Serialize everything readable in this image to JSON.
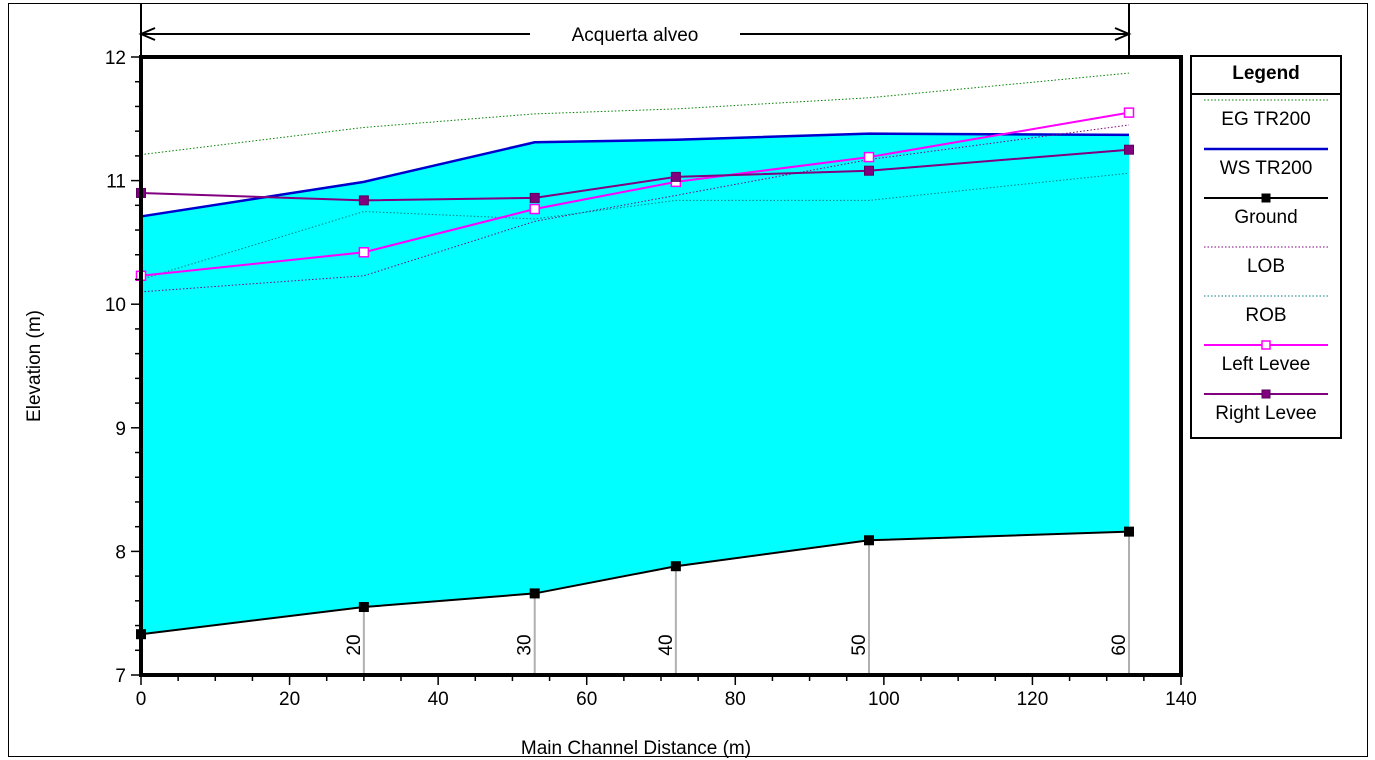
{
  "chart_data": {
    "type": "line",
    "title": "Acquerta alveo",
    "xlabel": "Main Channel Distance (m)",
    "ylabel": "Elevation (m)",
    "xlim": [
      0,
      140
    ],
    "ylim": [
      7,
      12
    ],
    "x_ticks": [
      0,
      20,
      40,
      60,
      80,
      100,
      120,
      140
    ],
    "y_ticks": [
      7,
      8,
      9,
      10,
      11,
      12
    ],
    "grid": false,
    "legend_position": "right",
    "legend_title": "Legend",
    "stations": [
      {
        "x": 30,
        "label": "20"
      },
      {
        "x": 53,
        "label": "30"
      },
      {
        "x": 72,
        "label": "40"
      },
      {
        "x": 98,
        "label": "50"
      },
      {
        "x": 133,
        "label": "60"
      }
    ],
    "series": [
      {
        "name": "EG  TR200",
        "color": "#008000",
        "style": "dotted",
        "x": [
          0,
          30,
          53,
          72,
          98,
          133
        ],
        "values": [
          11.21,
          11.43,
          11.54,
          11.58,
          11.67,
          11.87
        ]
      },
      {
        "name": "WS  TR200",
        "color": "#0000cc",
        "style": "solid-thick",
        "fill": "#00ffff",
        "x": [
          0,
          30,
          53,
          72,
          98,
          133
        ],
        "values": [
          10.71,
          10.99,
          11.31,
          11.33,
          11.38,
          11.37
        ]
      },
      {
        "name": "Ground",
        "color": "#000000",
        "style": "solid",
        "marker": "filled-square",
        "x": [
          0,
          30,
          53,
          72,
          98,
          133
        ],
        "values": [
          7.33,
          7.55,
          7.66,
          7.88,
          8.09,
          8.16
        ]
      },
      {
        "name": "LOB",
        "color": "#800080",
        "style": "dotted",
        "x": [
          0,
          30,
          53,
          72,
          98,
          133
        ],
        "values": [
          10.1,
          10.23,
          10.67,
          10.88,
          11.17,
          11.45
        ]
      },
      {
        "name": "ROB",
        "color": "#008080",
        "style": "dotted",
        "x": [
          0,
          30,
          53,
          72,
          98,
          133
        ],
        "values": [
          10.2,
          10.75,
          10.69,
          10.84,
          10.84,
          11.06
        ]
      },
      {
        "name": "Left Levee",
        "color": "#ff00ff",
        "style": "solid",
        "marker": "open-square",
        "x": [
          0,
          30,
          53,
          72,
          98,
          133
        ],
        "values": [
          10.23,
          10.42,
          10.77,
          10.99,
          11.19,
          11.55
        ]
      },
      {
        "name": "Right Levee",
        "color": "#800080",
        "style": "solid",
        "marker": "filled-square",
        "x": [
          0,
          30,
          53,
          72,
          98,
          133
        ],
        "values": [
          10.9,
          10.84,
          10.86,
          11.03,
          11.08,
          11.25
        ]
      }
    ]
  }
}
